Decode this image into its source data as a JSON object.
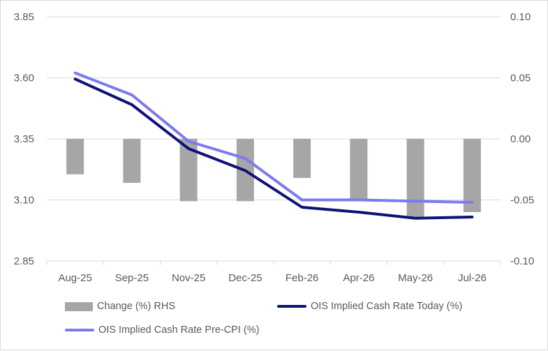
{
  "chart_data": {
    "type": "bar-line-combo",
    "categories": [
      "Aug-25",
      "Sep-25",
      "Nov-25",
      "Dec-25",
      "Feb-26",
      "Apr-26",
      "May-26",
      "Jul-26"
    ],
    "y_left": {
      "min": 2.85,
      "max": 3.85,
      "ticks": [
        "2.85",
        "3.10",
        "3.35",
        "3.60",
        "3.85"
      ]
    },
    "y_right": {
      "min": -0.1,
      "max": 0.1,
      "ticks": [
        "-0.10",
        "-0.05",
        "0.00",
        "0.05",
        "0.10"
      ]
    },
    "grid": "horizontal",
    "legend_position": "bottom",
    "series": [
      {
        "name": "Change (%) RHS",
        "kind": "bar",
        "axis": "right",
        "color": "#a6a6a6",
        "values": [
          -0.029,
          -0.036,
          -0.051,
          -0.051,
          -0.032,
          -0.05,
          -0.064,
          -0.06
        ]
      },
      {
        "name": "OIS Implied Cash Rate Today (%)",
        "kind": "line",
        "axis": "left",
        "color": "#0c1278",
        "values": [
          3.595,
          3.49,
          3.31,
          3.22,
          3.07,
          3.05,
          3.025,
          3.03
        ]
      },
      {
        "name": "OIS Implied Cash Rate Pre-CPI (%)",
        "kind": "line",
        "axis": "left",
        "color": "#7b7bf0",
        "values": [
          3.62,
          3.53,
          3.34,
          3.27,
          3.1,
          3.1,
          3.095,
          3.09
        ]
      }
    ]
  }
}
